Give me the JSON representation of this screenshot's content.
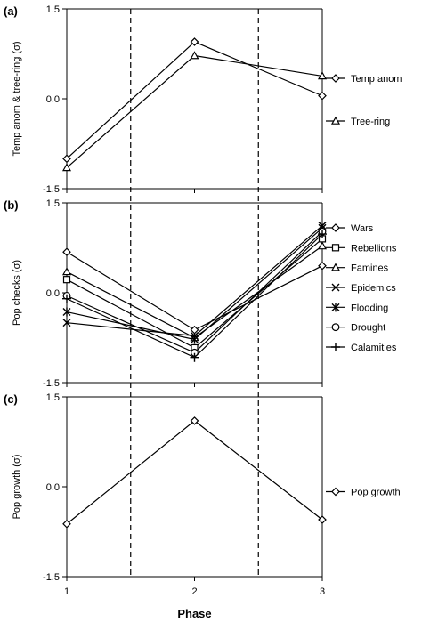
{
  "x_axis": {
    "label": "Phase",
    "ticks": [
      "1",
      "2",
      "3"
    ],
    "range": [
      1,
      3
    ],
    "phase_boundaries": [
      1.5,
      2.5
    ]
  },
  "chart_data": [
    {
      "type": "line",
      "panel_label": "(a)",
      "ylabel": "Temp anom & tree-ring (σ)",
      "ylim": [
        -1.5,
        1.5
      ],
      "yticks": [
        "1.5",
        "0.0",
        "-1.5"
      ],
      "x": [
        1,
        2,
        3
      ],
      "legend_placement": "right",
      "series": [
        {
          "name": "Temp anom",
          "marker": "diamond",
          "values": [
            -1.0,
            0.95,
            0.05
          ]
        },
        {
          "name": "Tree-ring",
          "marker": "triangle",
          "values": [
            -1.15,
            0.72,
            0.38
          ]
        }
      ]
    },
    {
      "type": "line",
      "panel_label": "(b)",
      "ylabel": "Pop checks (σ)",
      "ylim": [
        -1.5,
        1.5
      ],
      "yticks": [
        "1.5",
        "0.0",
        "-1.5"
      ],
      "x": [
        1,
        2,
        3
      ],
      "legend_placement": "right",
      "series": [
        {
          "name": "Wars",
          "marker": "diamond",
          "values": [
            0.68,
            -0.62,
            0.45
          ]
        },
        {
          "name": "Rebellions",
          "marker": "square",
          "values": [
            0.22,
            -0.92,
            0.9
          ]
        },
        {
          "name": "Famines",
          "marker": "triangle",
          "values": [
            0.35,
            -0.75,
            0.78
          ]
        },
        {
          "name": "Epidemics",
          "marker": "x",
          "values": [
            -0.5,
            -0.72,
            1.12
          ]
        },
        {
          "name": "Flooding",
          "marker": "asterisk",
          "values": [
            -0.32,
            -0.78,
            1.08
          ]
        },
        {
          "name": "Drought",
          "marker": "circle",
          "values": [
            -0.05,
            -1.0,
            1.02
          ]
        },
        {
          "name": "Calamities",
          "marker": "plus",
          "values": [
            -0.1,
            -1.08,
            0.98
          ]
        }
      ]
    },
    {
      "type": "line",
      "panel_label": "(c)",
      "ylabel": "Pop growth (σ)",
      "ylim": [
        -1.5,
        1.5
      ],
      "yticks": [
        "1.5",
        "0.0",
        "-1.5"
      ],
      "x": [
        1,
        2,
        3
      ],
      "legend_placement": "right",
      "series": [
        {
          "name": "Pop growth",
          "marker": "diamond",
          "values": [
            -0.62,
            1.1,
            -0.55
          ]
        }
      ]
    }
  ]
}
